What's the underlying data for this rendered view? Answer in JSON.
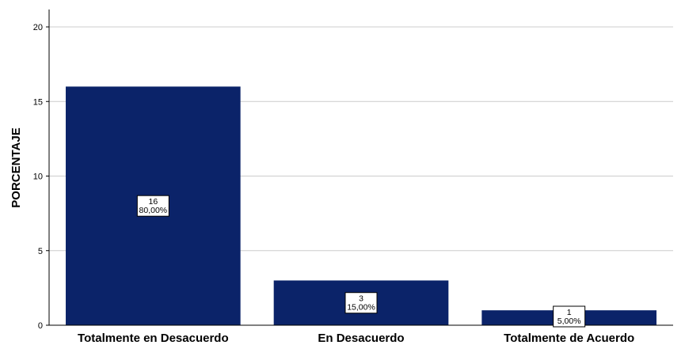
{
  "chart_data": {
    "type": "bar",
    "categories": [
      "Totalmente en Desacuerdo",
      "En Desacuerdo",
      "Totalmente de Acuerdo"
    ],
    "values": [
      16,
      3,
      1
    ],
    "data_labels": [
      {
        "count": "16",
        "percent": "80,00%"
      },
      {
        "count": "3",
        "percent": "15,00%"
      },
      {
        "count": "1",
        "percent": "5,00%"
      }
    ],
    "title": "",
    "xlabel": "",
    "ylabel": "PORCENTAJE",
    "ylim": [
      0,
      21
    ],
    "yticks": [
      0,
      5,
      10,
      15,
      20
    ],
    "grid": true,
    "legend": "none",
    "colors": {
      "bar": "#0B2369",
      "grid": "#cccccc",
      "axis": "#000000",
      "label_box": "#ffffff"
    }
  }
}
